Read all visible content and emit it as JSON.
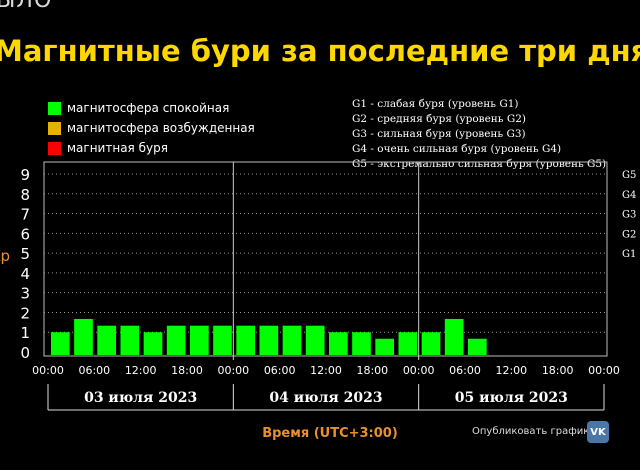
{
  "header": {
    "top_word": "ЫЛО",
    "headline": "Магнитные бури за последние три дня"
  },
  "legend": [
    {
      "label": "магнитосфера спокойная",
      "color": "#00ff00"
    },
    {
      "label": "магнитосфера возбужденная",
      "color": "#e8b100"
    },
    {
      "label": "магнитная буря",
      "color": "#ff0000"
    }
  ],
  "g_legend": [
    "G1 - слабая буря (уровень G1)",
    "G2 - средняя буря (уровень G2)",
    "G3 - сильная буря (уровень G3)",
    "G4 - очень сильная буря (уровень G4)",
    "G5 - экстремально сильная буря (уровень G5)"
  ],
  "share": {
    "label": "Опубликовать график:",
    "icon": "vk-icon",
    "icon_text": "VK"
  },
  "chart_data": {
    "type": "bar",
    "ylabel": "Kp",
    "xlabel": "Время (UTC+3:00)",
    "ylim": [
      0,
      9
    ],
    "y_ticks": [
      "0",
      "1",
      "2",
      "3",
      "4",
      "5",
      "6",
      "7",
      "8",
      "9"
    ],
    "g_levels": [
      {
        "kp": 5,
        "label": "G1"
      },
      {
        "kp": 6,
        "label": "G2"
      },
      {
        "kp": 7,
        "label": "G3"
      },
      {
        "kp": 8,
        "label": "G4"
      },
      {
        "kp": 9,
        "label": "G5"
      }
    ],
    "x_ticks": [
      "00:00",
      "06:00",
      "12:00",
      "18:00",
      "00:00",
      "06:00",
      "12:00",
      "18:00",
      "00:00",
      "06:00",
      "12:00",
      "18:00",
      "00:00"
    ],
    "days": [
      "03 июля 2023",
      "04 июля 2023",
      "05 июля 2023"
    ],
    "bar_color": "#00ff00",
    "values": [
      1.0,
      1.67,
      1.33,
      1.33,
      1.0,
      1.33,
      1.33,
      1.33,
      1.33,
      1.33,
      1.33,
      1.33,
      1.0,
      1.0,
      0.67,
      1.0,
      1.0,
      1.67,
      0.67
    ],
    "grid": true
  }
}
